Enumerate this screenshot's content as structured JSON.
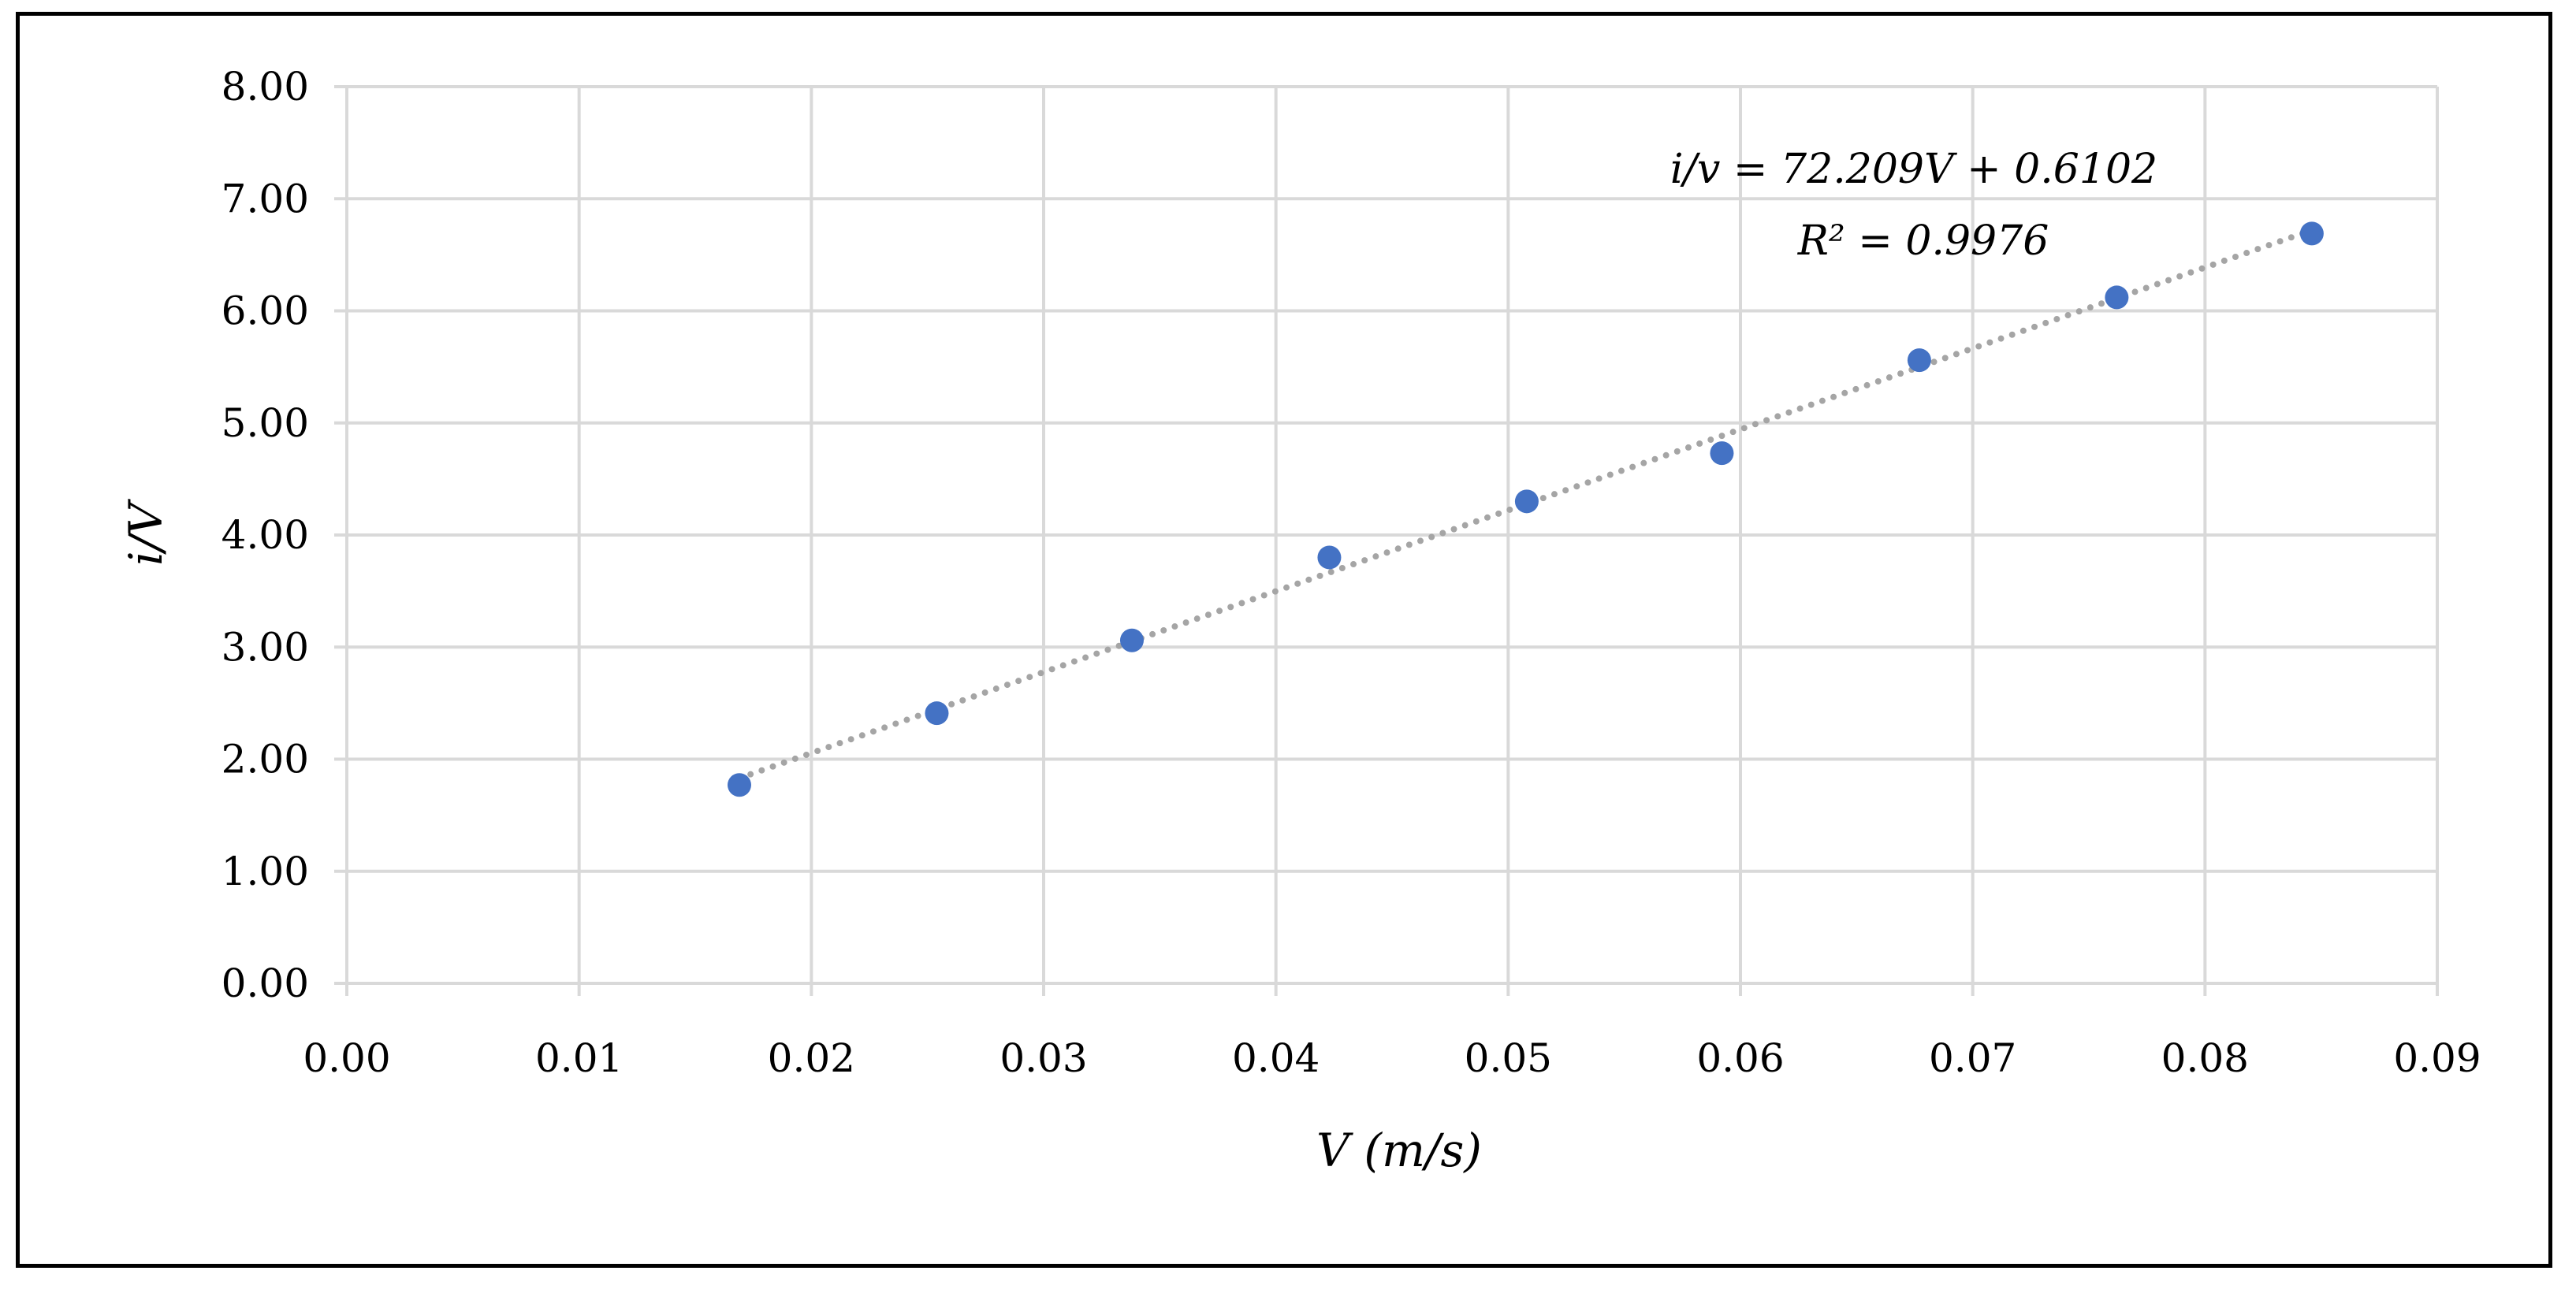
{
  "chart_data": {
    "type": "scatter",
    "title": "",
    "xlabel": "V (m/s)",
    "ylabel": "i/V",
    "xlim": [
      0,
      0.09
    ],
    "ylim": [
      0,
      8
    ],
    "x_ticks": [
      "0.00",
      "0.01",
      "0.02",
      "0.03",
      "0.04",
      "0.05",
      "0.06",
      "0.07",
      "0.08",
      "0.09"
    ],
    "y_ticks": [
      "0.00",
      "1.00",
      "2.00",
      "3.00",
      "4.00",
      "5.00",
      "6.00",
      "7.00",
      "8.00"
    ],
    "grid": true,
    "series": [
      {
        "name": "data",
        "color": "#4472C4",
        "x": [
          0.0169,
          0.0254,
          0.0338,
          0.0423,
          0.0508,
          0.0592,
          0.0677,
          0.0762,
          0.0846
        ],
        "y": [
          1.77,
          2.41,
          3.06,
          3.8,
          4.3,
          4.73,
          5.56,
          6.12,
          6.69
        ]
      }
    ],
    "trendline": {
      "type": "linear",
      "style": "dotted",
      "color": "#A5A5A5",
      "slope": 72.209,
      "intercept": 0.6102,
      "x_range": [
        0.0169,
        0.0846
      ],
      "equation_label": "i/v = 72.209V + 0.6102",
      "r2_label": "R² = 0.9976"
    }
  }
}
